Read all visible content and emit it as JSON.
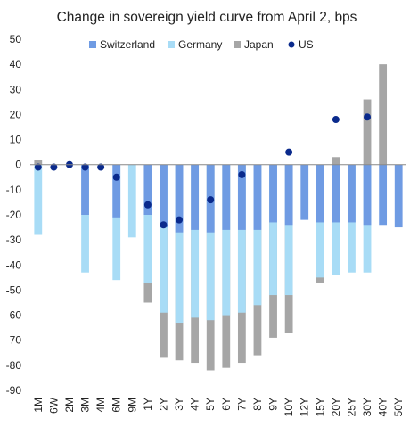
{
  "chart_data": {
    "type": "bar",
    "title": "Change in sovereign yield curve from April 2, bps",
    "xlabel": "",
    "ylabel": "",
    "ylim": [
      -90,
      50
    ],
    "yticks": [
      50,
      40,
      30,
      20,
      10,
      0,
      -10,
      -20,
      -30,
      -40,
      -50,
      -60,
      -70,
      -80,
      -90
    ],
    "grid": false,
    "legend_position": "top",
    "categories": [
      "1M",
      "6W",
      "2M",
      "3M",
      "4M",
      "6M",
      "9M",
      "1Y",
      "2Y",
      "3Y",
      "4Y",
      "5Y",
      "6Y",
      "7Y",
      "8Y",
      "9Y",
      "10Y",
      "12Y",
      "15Y",
      "20Y",
      "25Y",
      "30Y",
      "40Y",
      "50Y"
    ],
    "series": [
      {
        "name": "Switzerland",
        "type": "bar",
        "color": "#6f9be3",
        "values": [
          null,
          null,
          null,
          -20,
          null,
          -21,
          null,
          -20,
          -25,
          -27,
          -26,
          -27,
          -26,
          -26,
          -26,
          -23,
          -24,
          -22,
          -23,
          -23,
          -23,
          -24,
          -24,
          -25
        ]
      },
      {
        "name": "Germany",
        "type": "bar",
        "color": "#a8dcf6",
        "values": [
          -28,
          null,
          null,
          -43,
          null,
          -46,
          -29,
          -47,
          -59,
          -63,
          -61,
          -62,
          -60,
          -59,
          -56,
          -52,
          -52,
          null,
          -45,
          -44,
          -43,
          -43,
          null,
          null
        ]
      },
      {
        "name": "Japan",
        "type": "bar",
        "color": "#a6a6a6",
        "values": [
          2,
          null,
          null,
          null,
          null,
          null,
          null,
          -55,
          -77,
          -78,
          -79,
          -82,
          -81,
          -79,
          -76,
          -69,
          -67,
          null,
          -47,
          3,
          null,
          26,
          40,
          null
        ]
      },
      {
        "name": "US",
        "type": "scatter",
        "color": "#0a2a8c",
        "values": [
          -1,
          -1,
          0,
          -1,
          -1,
          -5,
          null,
          -16,
          -24,
          -22,
          null,
          -14,
          null,
          -4,
          null,
          null,
          5,
          null,
          null,
          18,
          null,
          19,
          null,
          null
        ]
      }
    ]
  }
}
